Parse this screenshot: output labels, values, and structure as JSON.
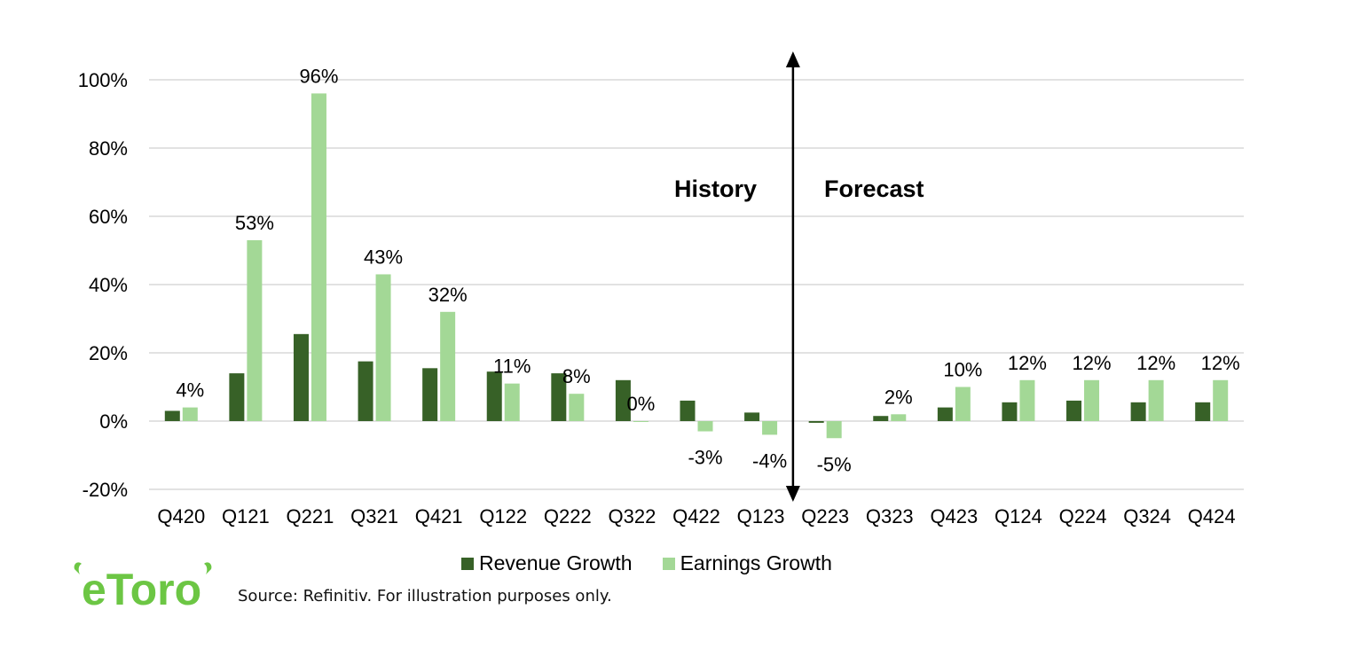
{
  "chart_data": {
    "type": "bar",
    "categories": [
      "Q420",
      "Q121",
      "Q221",
      "Q321",
      "Q421",
      "Q122",
      "Q222",
      "Q322",
      "Q422",
      "Q123",
      "Q223",
      "Q323",
      "Q423",
      "Q124",
      "Q224",
      "Q324",
      "Q424"
    ],
    "series": [
      {
        "name": "Revenue Growth",
        "color": "#376127",
        "values": [
          3,
          14,
          25.5,
          17.5,
          15.5,
          14.5,
          14,
          12,
          6,
          2.5,
          -0.5,
          1.5,
          4,
          5.5,
          6,
          5.5,
          5.5
        ]
      },
      {
        "name": "Earnings Growth",
        "color": "#a3d896",
        "values": [
          4,
          53,
          96,
          43,
          32,
          11,
          8,
          0,
          -3,
          -4,
          -5,
          2,
          10,
          12,
          12,
          12,
          12
        ]
      }
    ],
    "data_labels": [
      "4%",
      "53%",
      "96%",
      "43%",
      "32%",
      "11%",
      "8%",
      "0%",
      "-3%",
      "-4%",
      "-5%",
      "2%",
      "10%",
      "12%",
      "12%",
      "12%",
      "12%"
    ],
    "y_ticks": [
      "100%",
      "80%",
      "60%",
      "40%",
      "20%",
      "0%",
      "-20%"
    ],
    "y_tick_values": [
      100,
      80,
      60,
      40,
      20,
      0,
      -20
    ],
    "ylim": [
      -20,
      100
    ],
    "grid": true,
    "legend_position": "bottom",
    "annotations": {
      "left": "History",
      "right": "Forecast",
      "divider_after_category": "Q123"
    }
  },
  "legend": {
    "revenue": "Revenue Growth",
    "earnings": "Earnings Growth"
  },
  "source": "Source: Refinitiv. For illustration purposes only.",
  "logo": {
    "text": "eToro",
    "color": "#6cc644"
  }
}
